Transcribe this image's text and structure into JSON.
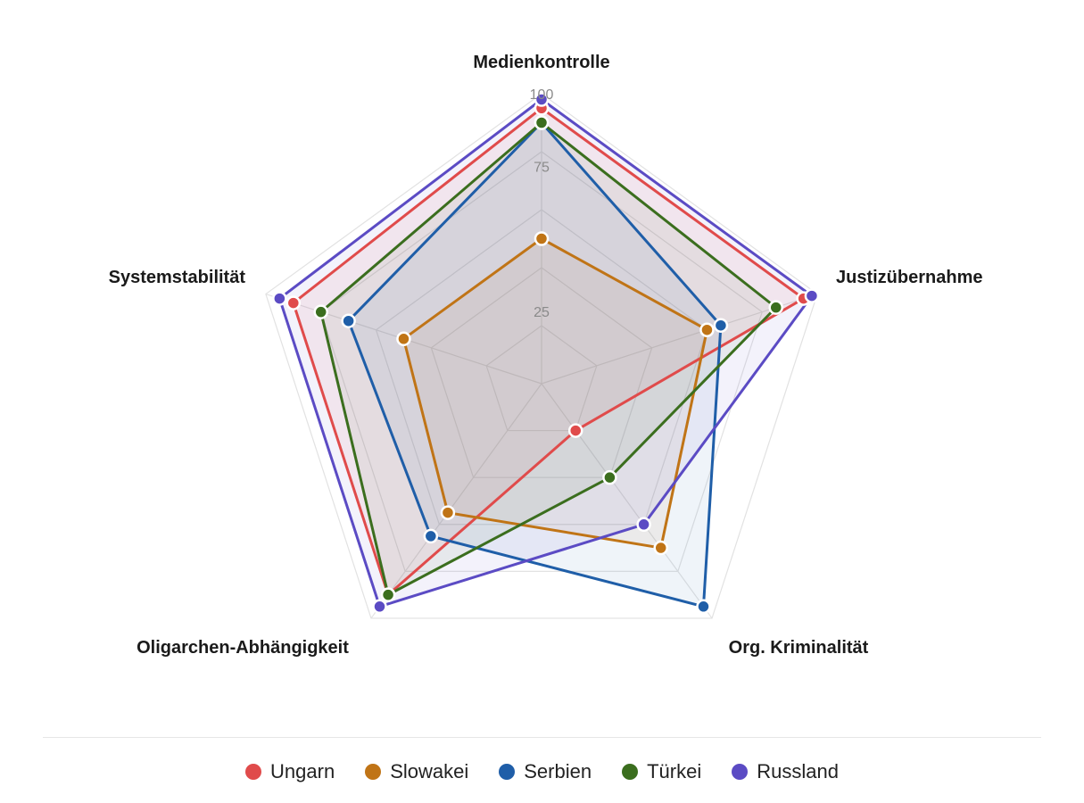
{
  "chart_data": {
    "type": "radar",
    "axes": [
      "Medienkontrolle",
      "Justizübernahme",
      "Org. Kriminalität",
      "Oligarchen-Abhängigkeit",
      "Systemstabilität"
    ],
    "rlim": [
      0,
      100
    ],
    "ticks": [
      "25",
      "75",
      "100"
    ],
    "grid": true,
    "legend_position": "bottom",
    "series": [
      {
        "name": "Ungarn",
        "color": "#e04b4b",
        "values": [
          95,
          95,
          20,
          90,
          90
        ]
      },
      {
        "name": "Slowakei",
        "color": "#c07416",
        "values": [
          50,
          60,
          70,
          55,
          50
        ]
      },
      {
        "name": "Serbien",
        "color": "#1f5ea8",
        "values": [
          90,
          65,
          95,
          65,
          70
        ]
      },
      {
        "name": "Türkei",
        "color": "#3b6e1e",
        "values": [
          90,
          85,
          40,
          90,
          80
        ]
      },
      {
        "name": "Russland",
        "color": "#5b4bc4",
        "values": [
          98,
          98,
          60,
          95,
          95
        ]
      }
    ]
  }
}
